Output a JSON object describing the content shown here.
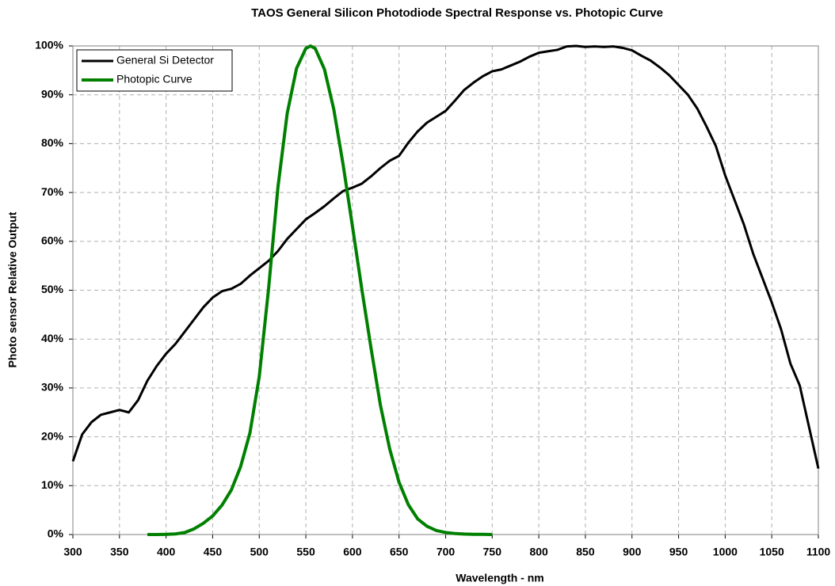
{
  "chart_data": {
    "type": "line",
    "title": "TAOS General Silicon Photodiode Spectral Response vs. Photopic Curve",
    "x_label": "Wavelength - nm",
    "y_label": "Photo sensor Relative Output",
    "xlim": [
      300,
      1100
    ],
    "xticks": [
      300,
      350,
      400,
      450,
      500,
      550,
      600,
      650,
      700,
      750,
      800,
      850,
      900,
      950,
      1000,
      1050,
      1100
    ],
    "ylim": [
      0,
      100
    ],
    "yticks": [
      {
        "value": 0,
        "label": "0%"
      },
      {
        "value": 10,
        "label": "10%"
      },
      {
        "value": 20,
        "label": "20%"
      },
      {
        "value": 30,
        "label": "30%"
      },
      {
        "value": 40,
        "label": "40%"
      },
      {
        "value": 50,
        "label": "50%"
      },
      {
        "value": 60,
        "label": "60%"
      },
      {
        "value": 70,
        "label": "70%"
      },
      {
        "value": 80,
        "label": "80%"
      },
      {
        "value": 90,
        "label": "90%"
      },
      {
        "value": 100,
        "label": "100%"
      }
    ],
    "grid": true,
    "legend": "top-left",
    "series": [
      {
        "name": "General Si Detector",
        "color": "#000000",
        "x": [
          300,
          310,
          320,
          330,
          340,
          350,
          360,
          370,
          380,
          390,
          400,
          410,
          420,
          430,
          440,
          450,
          460,
          470,
          480,
          490,
          500,
          510,
          520,
          530,
          540,
          550,
          560,
          570,
          580,
          590,
          600,
          610,
          620,
          630,
          640,
          650,
          660,
          670,
          680,
          690,
          700,
          710,
          720,
          730,
          740,
          750,
          760,
          770,
          780,
          790,
          800,
          810,
          820,
          830,
          840,
          850,
          860,
          870,
          880,
          890,
          900,
          910,
          920,
          930,
          940,
          950,
          960,
          970,
          980,
          990,
          1000,
          1010,
          1020,
          1030,
          1040,
          1050,
          1060,
          1070,
          1080,
          1090,
          1100
        ],
        "values": [
          15,
          20.5,
          23,
          24.5,
          25,
          25.5,
          25,
          27.5,
          31.5,
          34.5,
          37,
          39,
          41.5,
          44,
          46.5,
          48.5,
          49.8,
          50.3,
          51.3,
          53,
          54.5,
          56,
          58,
          60.5,
          62.5,
          64.5,
          65.8,
          67.2,
          68.8,
          70.3,
          71,
          71.8,
          73.3,
          75,
          76.5,
          77.5,
          80.2,
          82.5,
          84.3,
          85.5,
          86.7,
          88.8,
          91,
          92.5,
          93.8,
          94.8,
          95.2,
          96,
          96.8,
          97.8,
          98.6,
          98.9,
          99.2,
          99.9,
          100,
          99.8,
          99.9,
          99.8,
          99.9,
          99.6,
          99.1,
          98,
          97,
          95.6,
          94,
          92,
          90,
          87.2,
          83.5,
          79.5,
          73.5,
          68.5,
          63.5,
          57.5,
          52.5,
          47.5,
          42,
          35,
          30.5,
          22,
          13.5
        ]
      },
      {
        "name": "Photopic Curve",
        "color": "#008000",
        "x": [
          380,
          390,
          400,
          410,
          420,
          430,
          440,
          450,
          460,
          470,
          480,
          490,
          500,
          510,
          520,
          530,
          540,
          550,
          555,
          560,
          570,
          580,
          590,
          600,
          610,
          620,
          630,
          640,
          650,
          660,
          670,
          680,
          690,
          700,
          710,
          720,
          730,
          740,
          750
        ],
        "values": [
          0,
          0.01,
          0.04,
          0.12,
          0.4,
          1.16,
          2.3,
          3.8,
          6,
          9.1,
          13.9,
          20.8,
          32.3,
          50.3,
          71,
          86.2,
          95.4,
          99.5,
          100,
          99.5,
          95.2,
          87,
          75.7,
          63.1,
          50.3,
          38.1,
          26.5,
          17.5,
          10.7,
          6.1,
          3.2,
          1.7,
          0.82,
          0.41,
          0.21,
          0.1,
          0.05,
          0.03,
          0.01
        ]
      }
    ]
  }
}
